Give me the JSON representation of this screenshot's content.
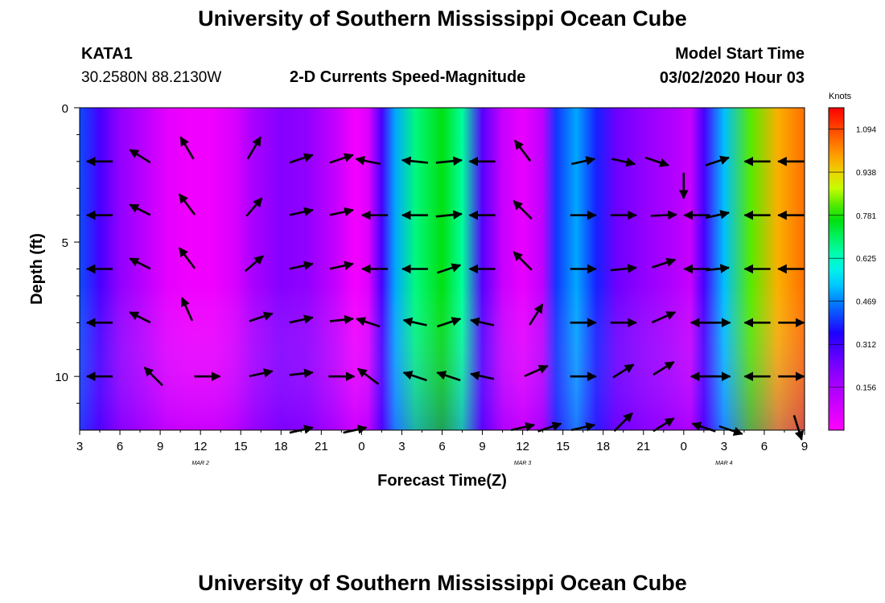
{
  "header": {
    "title_top": "University of Southern Mississippi Ocean Cube",
    "title_bottom": "University of Southern Mississippi Ocean Cube",
    "station": "KATA1",
    "location": "30.2580N 88.2130W",
    "plot_title": "2-D Currents Speed-Magnitude",
    "model_label": "Model Start Time",
    "model_time": "03/02/2020 Hour 03"
  },
  "chart_data": {
    "type": "heatmap",
    "title": "2-D Currents Speed-Magnitude",
    "xlabel": "Forecast Time(Z)",
    "ylabel": "Depth (ft)",
    "x_tick_labels": [
      "3",
      "6",
      "9",
      "12",
      "15",
      "18",
      "21",
      "0",
      "3",
      "6",
      "9",
      "12",
      "15",
      "18",
      "21",
      "0",
      "3",
      "6",
      "9"
    ],
    "x_hours": [
      3,
      6,
      9,
      12,
      15,
      18,
      21,
      24,
      27,
      30,
      33,
      36,
      39,
      42,
      45,
      48,
      51,
      54,
      57
    ],
    "xlim": [
      3,
      57
    ],
    "date_labels": [
      {
        "label": "MAR 2",
        "hour": 12
      },
      {
        "label": "MAR 3",
        "hour": 36
      },
      {
        "label": "MAR 4",
        "hour": 51
      }
    ],
    "y_tick_labels": [
      "0",
      "5",
      "10"
    ],
    "y_ticks": [
      0,
      5,
      10
    ],
    "ylim": [
      0,
      12
    ],
    "y_inverted": true,
    "colorbar": {
      "unit": "Knots",
      "labels": [
        "1.094",
        "0.938",
        "0.781",
        "0.625",
        "0.469",
        "0.312",
        "0.156"
      ],
      "values": [
        1.094,
        0.938,
        0.781,
        0.625,
        0.469,
        0.312,
        0.156
      ],
      "range": [
        0,
        1.172
      ]
    },
    "speed_profile": [
      {
        "hour": 3,
        "speed": 0.42
      },
      {
        "hour": 4.5,
        "speed": 0.3
      },
      {
        "hour": 6,
        "speed": 0.2
      },
      {
        "hour": 8,
        "speed": 0.12
      },
      {
        "hour": 9.5,
        "speed": 0.05
      },
      {
        "hour": 11,
        "speed": 0.03
      },
      {
        "hour": 13,
        "speed": 0.03
      },
      {
        "hour": 14.5,
        "speed": 0.07
      },
      {
        "hour": 16,
        "speed": 0.16
      },
      {
        "hour": 18,
        "speed": 0.22
      },
      {
        "hour": 20,
        "speed": 0.2
      },
      {
        "hour": 22,
        "speed": 0.11
      },
      {
        "hour": 23.5,
        "speed": 0.02
      },
      {
        "hour": 24.5,
        "speed": 0.06
      },
      {
        "hour": 25.5,
        "speed": 0.3
      },
      {
        "hour": 26.5,
        "speed": 0.5
      },
      {
        "hour": 28,
        "speed": 0.68
      },
      {
        "hour": 30,
        "speed": 0.76
      },
      {
        "hour": 31.5,
        "speed": 0.66
      },
      {
        "hour": 33,
        "speed": 0.28
      },
      {
        "hour": 34.5,
        "speed": 0.1
      },
      {
        "hour": 36,
        "speed": 0.04
      },
      {
        "hour": 37.5,
        "speed": 0.12
      },
      {
        "hour": 38.5,
        "speed": 0.4
      },
      {
        "hour": 40,
        "speed": 0.5
      },
      {
        "hour": 41.5,
        "speed": 0.38
      },
      {
        "hour": 43,
        "speed": 0.25
      },
      {
        "hour": 45,
        "speed": 0.2
      },
      {
        "hour": 47,
        "speed": 0.15
      },
      {
        "hour": 48.5,
        "speed": 0.1
      },
      {
        "hour": 49.5,
        "speed": 0.3
      },
      {
        "hour": 51,
        "speed": 0.52
      },
      {
        "hour": 53,
        "speed": 0.82
      },
      {
        "hour": 55,
        "speed": 0.98
      },
      {
        "hour": 57,
        "speed": 1.05
      }
    ],
    "arrows": [
      {
        "hour": 4.5,
        "depth": 2,
        "u": -1.0,
        "v": 0.0
      },
      {
        "hour": 7.5,
        "depth": 1.8,
        "u": -0.8,
        "v": 0.5
      },
      {
        "hour": 11,
        "depth": 1.5,
        "u": -0.5,
        "v": 0.85
      },
      {
        "hour": 16,
        "depth": 1.5,
        "u": 0.5,
        "v": 0.85
      },
      {
        "hour": 19.5,
        "depth": 1.9,
        "u": 0.9,
        "v": 0.3
      },
      {
        "hour": 22.5,
        "depth": 1.9,
        "u": 0.9,
        "v": 0.3
      },
      {
        "hour": 24.5,
        "depth": 2,
        "u": -0.95,
        "v": 0.2
      },
      {
        "hour": 28,
        "depth": 2,
        "u": -1.0,
        "v": 0.1
      },
      {
        "hour": 30.5,
        "depth": 2,
        "u": 1.0,
        "v": 0.1
      },
      {
        "hour": 33,
        "depth": 2,
        "u": -1.0,
        "v": 0.0
      },
      {
        "hour": 36,
        "depth": 1.6,
        "u": -0.6,
        "v": 0.8
      },
      {
        "hour": 40.5,
        "depth": 2,
        "u": 0.9,
        "v": 0.2
      },
      {
        "hour": 43.5,
        "depth": 2,
        "u": 0.9,
        "v": -0.2
      },
      {
        "hour": 46,
        "depth": 2,
        "u": 0.9,
        "v": -0.3
      },
      {
        "hour": 48,
        "depth": 2.9,
        "u": 0.0,
        "v": -1.0
      },
      {
        "hour": 50.5,
        "depth": 2,
        "u": 0.9,
        "v": 0.3
      },
      {
        "hour": 53.5,
        "depth": 2,
        "u": -1.0,
        "v": 0.0
      },
      {
        "hour": 56,
        "depth": 2,
        "u": -1.0,
        "v": 0.0
      },
      {
        "hour": 4.5,
        "depth": 4,
        "u": -1.0,
        "v": 0.0
      },
      {
        "hour": 7.5,
        "depth": 3.8,
        "u": -0.8,
        "v": 0.4
      },
      {
        "hour": 11,
        "depth": 3.6,
        "u": -0.6,
        "v": 0.8
      },
      {
        "hour": 16,
        "depth": 3.7,
        "u": 0.6,
        "v": 0.7
      },
      {
        "hour": 19.5,
        "depth": 3.9,
        "u": 0.9,
        "v": 0.2
      },
      {
        "hour": 22.5,
        "depth": 3.9,
        "u": 0.9,
        "v": 0.2
      },
      {
        "hour": 25,
        "depth": 4,
        "u": -1.0,
        "v": 0.0
      },
      {
        "hour": 28,
        "depth": 4,
        "u": -1.0,
        "v": 0.0
      },
      {
        "hour": 30.5,
        "depth": 4,
        "u": 1.0,
        "v": 0.1
      },
      {
        "hour": 33,
        "depth": 4,
        "u": -1.0,
        "v": 0.0
      },
      {
        "hour": 36,
        "depth": 3.8,
        "u": -0.7,
        "v": 0.7
      },
      {
        "hour": 40.5,
        "depth": 4,
        "u": 1.0,
        "v": 0.0
      },
      {
        "hour": 43.5,
        "depth": 4,
        "u": 1.0,
        "v": 0.0
      },
      {
        "hour": 46.5,
        "depth": 4,
        "u": 1.0,
        "v": 0.05
      },
      {
        "hour": 49,
        "depth": 4,
        "u": -1.0,
        "v": 0.0
      },
      {
        "hour": 50.5,
        "depth": 4,
        "u": 0.9,
        "v": 0.2
      },
      {
        "hour": 53.5,
        "depth": 4,
        "u": -1.0,
        "v": 0.0
      },
      {
        "hour": 56,
        "depth": 4,
        "u": -1.0,
        "v": 0.0
      },
      {
        "hour": 4.5,
        "depth": 6,
        "u": -1.0,
        "v": 0.0
      },
      {
        "hour": 7.5,
        "depth": 5.8,
        "u": -0.8,
        "v": 0.4
      },
      {
        "hour": 11,
        "depth": 5.6,
        "u": -0.6,
        "v": 0.8
      },
      {
        "hour": 16,
        "depth": 5.8,
        "u": 0.7,
        "v": 0.6
      },
      {
        "hour": 19.5,
        "depth": 5.9,
        "u": 0.9,
        "v": 0.2
      },
      {
        "hour": 22.5,
        "depth": 5.9,
        "u": 0.9,
        "v": 0.2
      },
      {
        "hour": 25,
        "depth": 6,
        "u": -1.0,
        "v": 0.0
      },
      {
        "hour": 28,
        "depth": 6,
        "u": -1.0,
        "v": 0.0
      },
      {
        "hour": 30.5,
        "depth": 6,
        "u": 0.9,
        "v": 0.3
      },
      {
        "hour": 33,
        "depth": 6,
        "u": -1.0,
        "v": 0.0
      },
      {
        "hour": 36,
        "depth": 5.7,
        "u": -0.7,
        "v": 0.7
      },
      {
        "hour": 40.5,
        "depth": 6,
        "u": 1.0,
        "v": 0.0
      },
      {
        "hour": 43.5,
        "depth": 6,
        "u": 1.0,
        "v": 0.1
      },
      {
        "hour": 46.5,
        "depth": 5.8,
        "u": 0.9,
        "v": 0.3
      },
      {
        "hour": 49,
        "depth": 6,
        "u": -1.0,
        "v": 0.0
      },
      {
        "hour": 50.5,
        "depth": 6,
        "u": 0.9,
        "v": 0.1
      },
      {
        "hour": 53.5,
        "depth": 6,
        "u": -1.0,
        "v": 0.0
      },
      {
        "hour": 56,
        "depth": 6,
        "u": -1.0,
        "v": 0.0
      },
      {
        "hour": 4.5,
        "depth": 8,
        "u": -1.0,
        "v": 0.0
      },
      {
        "hour": 7.5,
        "depth": 7.8,
        "u": -0.8,
        "v": 0.4
      },
      {
        "hour": 11,
        "depth": 7.5,
        "u": -0.4,
        "v": 0.9
      },
      {
        "hour": 16.5,
        "depth": 7.8,
        "u": 0.9,
        "v": 0.3
      },
      {
        "hour": 19.5,
        "depth": 7.9,
        "u": 0.9,
        "v": 0.2
      },
      {
        "hour": 22.5,
        "depth": 7.9,
        "u": 0.9,
        "v": 0.1
      },
      {
        "hour": 24.5,
        "depth": 8,
        "u": -0.9,
        "v": 0.3
      },
      {
        "hour": 28,
        "depth": 8,
        "u": -0.9,
        "v": 0.2
      },
      {
        "hour": 30.5,
        "depth": 8,
        "u": 0.9,
        "v": 0.3
      },
      {
        "hour": 33,
        "depth": 8,
        "u": -0.9,
        "v": 0.2
      },
      {
        "hour": 37,
        "depth": 7.7,
        "u": 0.5,
        "v": 0.8
      },
      {
        "hour": 40.5,
        "depth": 8,
        "u": 1.0,
        "v": 0.0
      },
      {
        "hour": 43.5,
        "depth": 8,
        "u": 1.0,
        "v": 0.0
      },
      {
        "hour": 46.5,
        "depth": 7.8,
        "u": 0.9,
        "v": 0.4
      },
      {
        "hour": 49.5,
        "depth": 8,
        "u": -1.0,
        "v": 0.0
      },
      {
        "hour": 50.5,
        "depth": 8,
        "u": 1.0,
        "v": 0.0
      },
      {
        "hour": 53.5,
        "depth": 8,
        "u": -1.0,
        "v": 0.0
      },
      {
        "hour": 56,
        "depth": 8,
        "u": 1.0,
        "v": 0.0
      },
      {
        "hour": 4.5,
        "depth": 10,
        "u": -1.0,
        "v": 0.0
      },
      {
        "hour": 8.5,
        "depth": 10,
        "u": -0.7,
        "v": 0.7
      },
      {
        "hour": 12.5,
        "depth": 10,
        "u": 1.0,
        "v": 0.0
      },
      {
        "hour": 16.5,
        "depth": 9.9,
        "u": 0.9,
        "v": 0.2
      },
      {
        "hour": 19.5,
        "depth": 9.9,
        "u": 0.9,
        "v": 0.1
      },
      {
        "hour": 22.5,
        "depth": 10,
        "u": 1.0,
        "v": 0.0
      },
      {
        "hour": 24.5,
        "depth": 10,
        "u": -0.8,
        "v": 0.6
      },
      {
        "hour": 28,
        "depth": 10,
        "u": -0.9,
        "v": 0.3
      },
      {
        "hour": 30.5,
        "depth": 10,
        "u": -0.9,
        "v": 0.3
      },
      {
        "hour": 33,
        "depth": 10,
        "u": -0.9,
        "v": 0.2
      },
      {
        "hour": 37,
        "depth": 9.8,
        "u": 0.9,
        "v": 0.4
      },
      {
        "hour": 40.5,
        "depth": 10,
        "u": 1.0,
        "v": 0.0
      },
      {
        "hour": 43.5,
        "depth": 9.8,
        "u": 0.8,
        "v": 0.5
      },
      {
        "hour": 46.5,
        "depth": 9.7,
        "u": 0.8,
        "v": 0.5
      },
      {
        "hour": 49.5,
        "depth": 10,
        "u": -1.0,
        "v": 0.0
      },
      {
        "hour": 50.5,
        "depth": 10,
        "u": 1.0,
        "v": 0.0
      },
      {
        "hour": 53.5,
        "depth": 10,
        "u": -1.0,
        "v": 0.0
      },
      {
        "hour": 56,
        "depth": 10,
        "u": 1.0,
        "v": 0.0
      },
      {
        "hour": 19.5,
        "depth": 12,
        "u": 0.9,
        "v": 0.2
      },
      {
        "hour": 23.5,
        "depth": 12,
        "u": 0.9,
        "v": 0.2
      },
      {
        "hour": 36,
        "depth": 11.9,
        "u": 0.9,
        "v": 0.2
      },
      {
        "hour": 38,
        "depth": 11.9,
        "u": 0.9,
        "v": 0.3
      },
      {
        "hour": 40.5,
        "depth": 11.9,
        "u": 0.9,
        "v": 0.2
      },
      {
        "hour": 43.5,
        "depth": 11.7,
        "u": 0.7,
        "v": 0.7
      },
      {
        "hour": 46.5,
        "depth": 11.8,
        "u": 0.8,
        "v": 0.5
      },
      {
        "hour": 49.5,
        "depth": 11.9,
        "u": -0.9,
        "v": 0.3
      },
      {
        "hour": 51.5,
        "depth": 12,
        "u": 0.9,
        "v": -0.3
      },
      {
        "hour": 56.5,
        "depth": 11.9,
        "u": 0.3,
        "v": -0.95
      }
    ],
    "grid": false,
    "legend": "colorbar-right"
  }
}
